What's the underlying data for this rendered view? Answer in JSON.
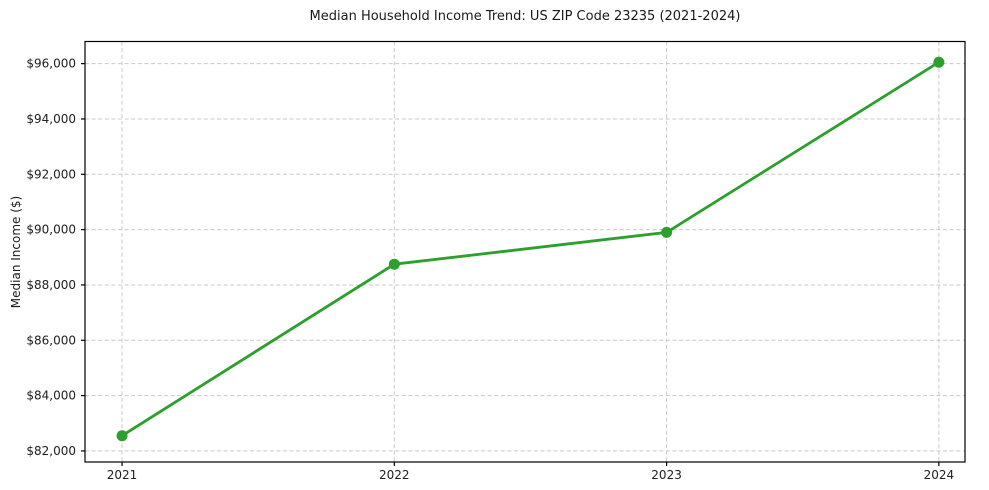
{
  "chart_data": {
    "type": "line",
    "title": "Median Household Income Trend: US ZIP Code 23235 (2021-2024)",
    "xlabel": "",
    "ylabel": "Median Income ($)",
    "categories": [
      "2021",
      "2022",
      "2023",
      "2024"
    ],
    "x": [
      2021,
      2022,
      2023,
      2024
    ],
    "series": [
      {
        "name": "Median Household Income",
        "values": [
          82550,
          88750,
          89900,
          96050
        ]
      }
    ],
    "y_ticks": [
      82000,
      84000,
      86000,
      88000,
      90000,
      92000,
      94000,
      96000
    ],
    "y_tick_labels": [
      "$82,000",
      "$84,000",
      "$86,000",
      "$88,000",
      "$90,000",
      "$92,000",
      "$94,000",
      "$96,000"
    ],
    "xlim": [
      2020.864,
      2024.096
    ],
    "ylim": [
      81600,
      96800
    ],
    "grid": true,
    "grid_line_style": "dashed",
    "legend_position": "none",
    "marker": "circle",
    "colors": {
      "line": "#2ca02c",
      "marker": "#2ca02c",
      "grid": "#c9c9c9",
      "axis": "#000000",
      "text": "#202020",
      "background": "#ffffff"
    }
  }
}
